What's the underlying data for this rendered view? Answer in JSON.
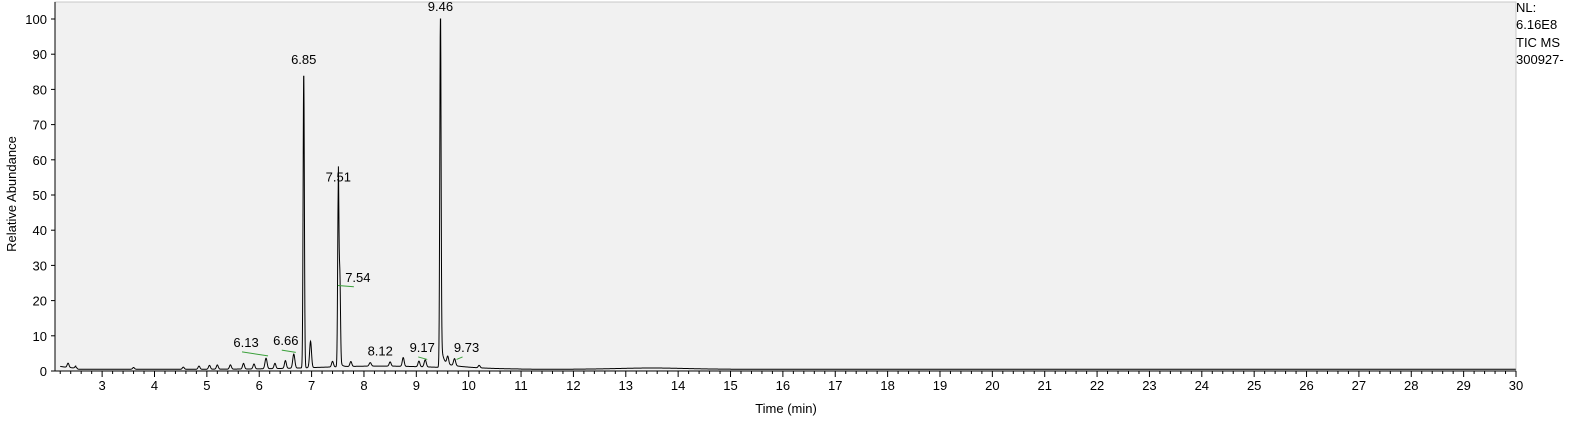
{
  "header": {
    "nl_label": "NL:",
    "nl_value": "6.16E8",
    "scan_filter": "TIC  MS",
    "file_name": "300927-"
  },
  "chart_data": {
    "type": "line",
    "title": "",
    "xlabel": "Time (min)",
    "ylabel": "Relative Abundance",
    "xlim": [
      2.1,
      30
    ],
    "ylim": [
      0,
      100
    ],
    "x_ticks": [
      3,
      4,
      5,
      6,
      7,
      8,
      9,
      10,
      11,
      12,
      13,
      14,
      15,
      16,
      17,
      18,
      19,
      20,
      21,
      22,
      23,
      24,
      25,
      26,
      27,
      28,
      29,
      30
    ],
    "y_ticks": [
      0,
      10,
      20,
      30,
      40,
      50,
      60,
      70,
      80,
      90,
      100
    ],
    "grid": false,
    "line_color": "#000000",
    "peaks": [
      {
        "label": "6.13",
        "rt": 6.13,
        "height": 4
      },
      {
        "label": "6.66",
        "rt": 6.66,
        "height": 5
      },
      {
        "label": "6.85",
        "rt": 6.85,
        "height": 85
      },
      {
        "label": "7.51",
        "rt": 7.51,
        "height": 51.5
      },
      {
        "label": "7.54",
        "rt": 7.54,
        "height": 24
      },
      {
        "label": "8.12",
        "rt": 8.12,
        "height": 2
      },
      {
        "label": "9.17",
        "rt": 9.17,
        "height": 3
      },
      {
        "label": "9.46",
        "rt": 9.46,
        "height": 100
      },
      {
        "label": "9.73",
        "rt": 9.73,
        "height": 3
      }
    ]
  }
}
